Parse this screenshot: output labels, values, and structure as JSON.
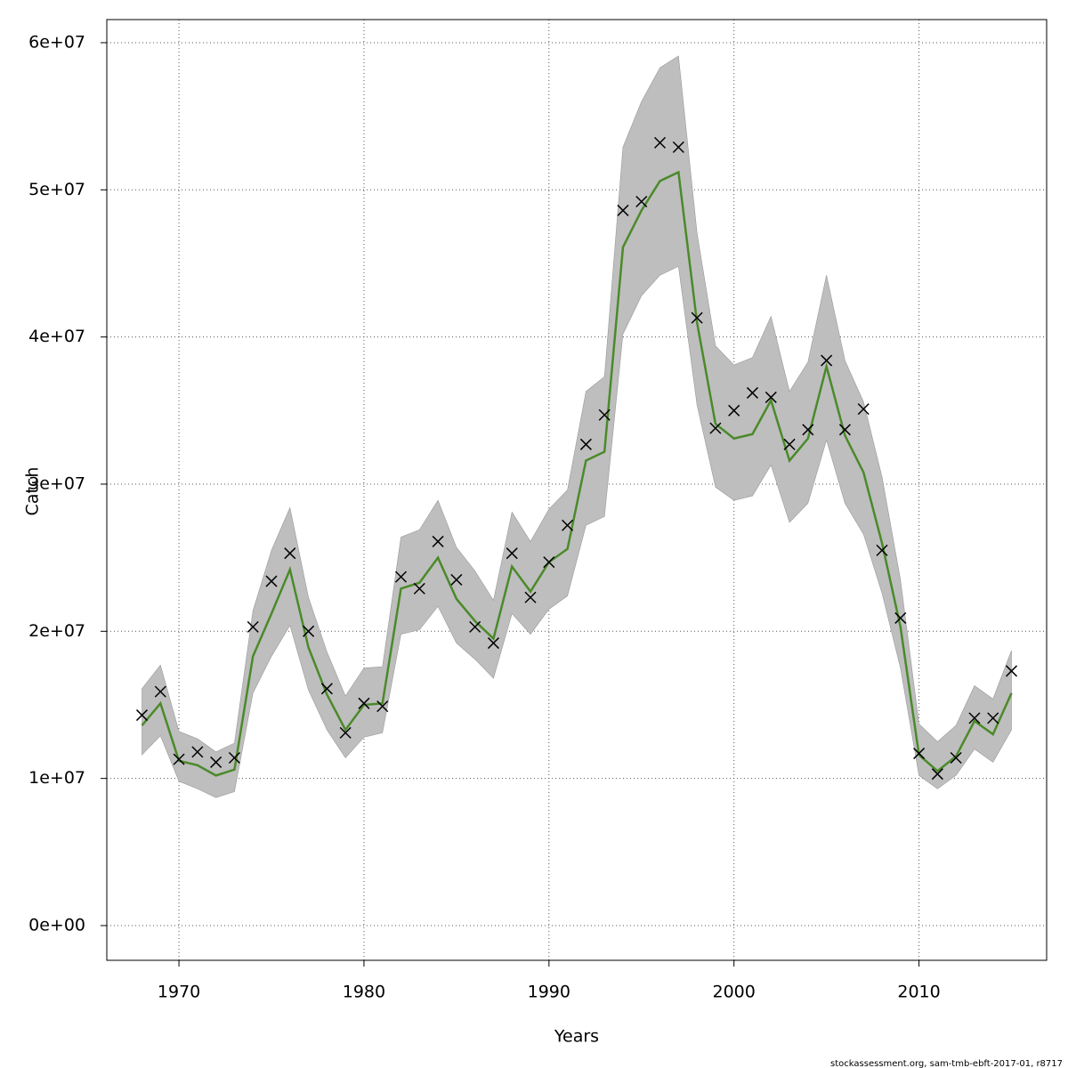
{
  "chart_data": {
    "type": "line",
    "x_label": "Years",
    "y_label": "Catch",
    "footer": "stockassessment.org, sam-tmb-ebft-2017-01, r8717",
    "x": [
      1968,
      1969,
      1970,
      1971,
      1972,
      1973,
      1974,
      1975,
      1976,
      1977,
      1978,
      1979,
      1980,
      1981,
      1982,
      1983,
      1984,
      1985,
      1986,
      1987,
      1988,
      1989,
      1990,
      1991,
      1992,
      1993,
      1994,
      1995,
      1996,
      1997,
      1998,
      1999,
      2000,
      2001,
      2002,
      2003,
      2004,
      2005,
      2006,
      2007,
      2008,
      2009,
      2010,
      2011,
      2012,
      2013,
      2014,
      2015
    ],
    "estimate": {
      "color": "#4a8a2a",
      "values": [
        13600000,
        15100000,
        11200000,
        10900000,
        10200000,
        10600000,
        18300000,
        21200000,
        24200000,
        18900000,
        15700000,
        13300000,
        15000000,
        15100000,
        22900000,
        23300000,
        25000000,
        22200000,
        20700000,
        19500000,
        24400000,
        22700000,
        24700000,
        25600000,
        31600000,
        32200000,
        46100000,
        48600000,
        50600000,
        51200000,
        41000000,
        34100000,
        33100000,
        33400000,
        35700000,
        31600000,
        33100000,
        38000000,
        33300000,
        30800000,
        26000000,
        20300000,
        11600000,
        10500000,
        11500000,
        13900000,
        13000000,
        15800000
      ]
    },
    "observed": {
      "color": "#000000",
      "values": [
        14300000,
        15900000,
        11300000,
        11800000,
        11100000,
        11400000,
        20300000,
        23400000,
        25300000,
        20000000,
        16100000,
        13100000,
        15100000,
        14900000,
        23700000,
        22900000,
        26100000,
        23500000,
        20300000,
        19200000,
        25300000,
        22300000,
        24700000,
        27200000,
        32700000,
        34700000,
        48600000,
        49200000,
        53200000,
        52900000,
        41300000,
        33800000,
        35000000,
        36200000,
        35900000,
        32700000,
        33700000,
        38400000,
        33700000,
        35100000,
        25500000,
        20900000,
        11700000,
        10300000,
        11400000,
        14100000,
        14100000,
        17300000
      ]
    },
    "band": {
      "color": "#bebebe",
      "upper": [
        16100000,
        17700000,
        13200000,
        12700000,
        11800000,
        12400000,
        21400000,
        25500000,
        28400000,
        22300000,
        18600000,
        15600000,
        17500000,
        17600000,
        26400000,
        26900000,
        28900000,
        25700000,
        24100000,
        22100000,
        28100000,
        26100000,
        28300000,
        29600000,
        36300000,
        37300000,
        52900000,
        56000000,
        58300000,
        59100000,
        47100000,
        39400000,
        38100000,
        38600000,
        41400000,
        36300000,
        38300000,
        44200000,
        38400000,
        35600000,
        30500000,
        23500000,
        13700000,
        12500000,
        13600000,
        16300000,
        15400000,
        18700000
      ],
      "lower": [
        11600000,
        12900000,
        9800000,
        9300000,
        8700000,
        9100000,
        15800000,
        18300000,
        20400000,
        16000000,
        13300000,
        11400000,
        12800000,
        13100000,
        19800000,
        20100000,
        21700000,
        19200000,
        18100000,
        16800000,
        21200000,
        19800000,
        21500000,
        22400000,
        27200000,
        27800000,
        40200000,
        42800000,
        44200000,
        44800000,
        35400000,
        29800000,
        28900000,
        29200000,
        31300000,
        27400000,
        28700000,
        33000000,
        28700000,
        26600000,
        22600000,
        17500000,
        10200000,
        9300000,
        10200000,
        12000000,
        11100000,
        13300000
      ]
    },
    "xlim": [
      1966.1,
      2016.9
    ],
    "xticks": [
      1970,
      1980,
      1990,
      2000,
      2010
    ],
    "ylim": [
      -2360000,
      61570000
    ],
    "yticks": [
      {
        "value": 0,
        "label": "0e+00"
      },
      {
        "value": 10000000,
        "label": "1e+07"
      },
      {
        "value": 20000000,
        "label": "2e+07"
      },
      {
        "value": 30000000,
        "label": "3e+07"
      },
      {
        "value": 40000000,
        "label": "4e+07"
      },
      {
        "value": 50000000,
        "label": "5e+07"
      },
      {
        "value": 60000000,
        "label": "6e+07"
      }
    ],
    "grid": true
  }
}
